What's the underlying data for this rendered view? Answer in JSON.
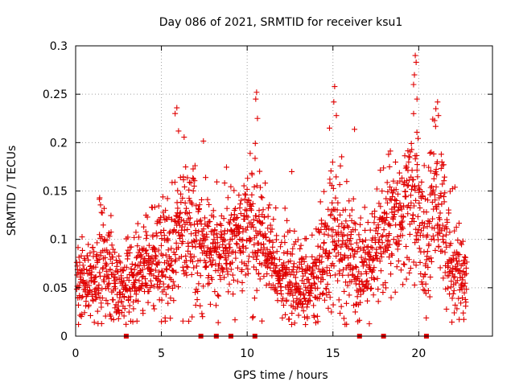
{
  "chart_data": {
    "type": "scatter",
    "title": "Day 086 of 2021, SRMTID for receiver ksu1",
    "xlabel": "GPS time / hours",
    "ylabel": "SRMTID / TECUs",
    "xlim": [
      0,
      24.3
    ],
    "ylim": [
      0,
      0.3
    ],
    "x_ticks": [
      0,
      5,
      10,
      15,
      20
    ],
    "x_tick_labels": [
      "0",
      "5",
      "10",
      "15",
      "20"
    ],
    "y_ticks": [
      0,
      0.05,
      0.1,
      0.15,
      0.2,
      0.25,
      0.3
    ],
    "y_tick_labels": [
      "0",
      "0.05",
      "0.1",
      "0.15",
      "0.2",
      "0.25",
      "0.3"
    ],
    "grid": true,
    "marker": "plus",
    "series_color": "#e00000",
    "activity_profile": [
      {
        "t": 0.0,
        "mean": 0.05,
        "spread": 0.018
      },
      {
        "t": 1.0,
        "mean": 0.055,
        "spread": 0.02
      },
      {
        "t": 1.6,
        "mean": 0.075,
        "spread": 0.028
      },
      {
        "t": 2.4,
        "mean": 0.05,
        "spread": 0.018
      },
      {
        "t": 3.5,
        "mean": 0.06,
        "spread": 0.02
      },
      {
        "t": 4.5,
        "mean": 0.075,
        "spread": 0.022
      },
      {
        "t": 5.5,
        "mean": 0.085,
        "spread": 0.03
      },
      {
        "t": 6.2,
        "mean": 0.115,
        "spread": 0.035
      },
      {
        "t": 7.0,
        "mean": 0.11,
        "spread": 0.03
      },
      {
        "t": 8.0,
        "mean": 0.085,
        "spread": 0.025
      },
      {
        "t": 9.5,
        "mean": 0.1,
        "spread": 0.028
      },
      {
        "t": 10.3,
        "mean": 0.11,
        "spread": 0.035
      },
      {
        "t": 11.5,
        "mean": 0.075,
        "spread": 0.022
      },
      {
        "t": 13.0,
        "mean": 0.05,
        "spread": 0.018
      },
      {
        "t": 14.0,
        "mean": 0.055,
        "spread": 0.02
      },
      {
        "t": 15.0,
        "mean": 0.1,
        "spread": 0.035
      },
      {
        "t": 16.0,
        "mean": 0.08,
        "spread": 0.03
      },
      {
        "t": 17.0,
        "mean": 0.065,
        "spread": 0.022
      },
      {
        "t": 18.0,
        "mean": 0.11,
        "spread": 0.03
      },
      {
        "t": 19.0,
        "mean": 0.115,
        "spread": 0.03
      },
      {
        "t": 19.8,
        "mean": 0.15,
        "spread": 0.04
      },
      {
        "t": 20.4,
        "mean": 0.08,
        "spread": 0.03
      },
      {
        "t": 21.0,
        "mean": 0.15,
        "spread": 0.035
      },
      {
        "t": 21.8,
        "mean": 0.085,
        "spread": 0.03
      },
      {
        "t": 22.7,
        "mean": 0.055,
        "spread": 0.018
      }
    ],
    "data_extent_hours": [
      0.0,
      22.8
    ],
    "sample_count": 2000,
    "peaks": [
      {
        "x": 5.9,
        "y": 0.236
      },
      {
        "x": 5.8,
        "y": 0.23
      },
      {
        "x": 6.0,
        "y": 0.212
      },
      {
        "x": 10.55,
        "y": 0.252
      },
      {
        "x": 10.5,
        "y": 0.245
      },
      {
        "x": 10.6,
        "y": 0.225
      },
      {
        "x": 15.1,
        "y": 0.258
      },
      {
        "x": 15.05,
        "y": 0.242
      },
      {
        "x": 15.2,
        "y": 0.228
      },
      {
        "x": 14.8,
        "y": 0.215
      },
      {
        "x": 19.8,
        "y": 0.29
      },
      {
        "x": 19.85,
        "y": 0.283
      },
      {
        "x": 19.75,
        "y": 0.27
      },
      {
        "x": 19.7,
        "y": 0.26
      },
      {
        "x": 19.9,
        "y": 0.245
      },
      {
        "x": 21.1,
        "y": 0.242
      },
      {
        "x": 21.0,
        "y": 0.235
      },
      {
        "x": 21.15,
        "y": 0.228
      },
      {
        "x": 12.6,
        "y": 0.17
      },
      {
        "x": 1.4,
        "y": 0.143
      },
      {
        "x": 4.1,
        "y": 0.125
      },
      {
        "x": 18.3,
        "y": 0.175
      }
    ],
    "lows": [
      {
        "x": 5.0,
        "y": 0.015
      },
      {
        "x": 2.5,
        "y": 0.018
      },
      {
        "x": 13.4,
        "y": 0.012
      },
      {
        "x": 13.5,
        "y": 0.02
      },
      {
        "x": 16.3,
        "y": 0.025
      },
      {
        "x": 7.0,
        "y": 0.032
      }
    ],
    "baseline_markers_x": [
      2.95,
      7.3,
      8.2,
      9.05,
      10.45,
      16.55,
      17.95,
      20.45
    ]
  }
}
